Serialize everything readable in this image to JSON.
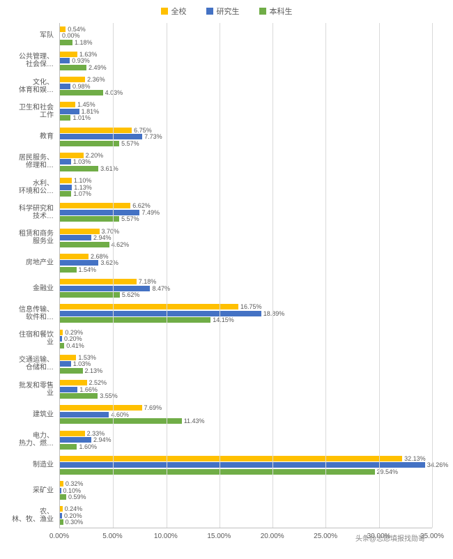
{
  "chart": {
    "type": "bar",
    "orientation": "horizontal",
    "xlim": [
      0,
      35
    ],
    "xtick_step": 5,
    "xtick_format_suffix": ".00%",
    "background_color": "#ffffff",
    "grid_color": "#d9d9d9",
    "axis_color": "#bfbfbf",
    "label_fontsize": 10,
    "value_fontsize": 9,
    "series": [
      {
        "name": "全校",
        "color": "#ffc000"
      },
      {
        "name": "研究生",
        "color": "#4472c4"
      },
      {
        "name": "本科生",
        "color": "#70ad47"
      }
    ],
    "categories": [
      {
        "label": "军队",
        "values": [
          0.54,
          0.0,
          1.18
        ]
      },
      {
        "label": "公共管理、社会保…",
        "values": [
          1.63,
          0.93,
          2.49
        ]
      },
      {
        "label": "文化、体育和娱…",
        "values": [
          2.36,
          0.98,
          4.03
        ]
      },
      {
        "label": "卫生和社会工作",
        "values": [
          1.45,
          1.81,
          1.01
        ]
      },
      {
        "label": "教育",
        "values": [
          6.75,
          7.73,
          5.57
        ]
      },
      {
        "label": "居民服务、修理和…",
        "values": [
          2.2,
          1.03,
          3.61
        ]
      },
      {
        "label": "水利、环境和公…",
        "values": [
          1.1,
          1.13,
          1.07
        ]
      },
      {
        "label": "科学研究和技术…",
        "values": [
          6.62,
          7.49,
          5.57
        ]
      },
      {
        "label": "租赁和商务服务业",
        "values": [
          3.7,
          2.94,
          4.62
        ]
      },
      {
        "label": "房地产业",
        "values": [
          2.68,
          3.62,
          1.54
        ]
      },
      {
        "label": "金融业",
        "values": [
          7.18,
          8.47,
          5.62
        ]
      },
      {
        "label": "信息传输、软件和…",
        "values": [
          16.75,
          18.89,
          14.15
        ]
      },
      {
        "label": "住宿和餐饮业",
        "values": [
          0.29,
          0.2,
          0.41
        ]
      },
      {
        "label": "交通运输、仓储和…",
        "values": [
          1.53,
          1.03,
          2.13
        ]
      },
      {
        "label": "批发和零售业",
        "values": [
          2.52,
          1.66,
          3.55
        ]
      },
      {
        "label": "建筑业",
        "values": [
          7.69,
          4.6,
          11.43
        ]
      },
      {
        "label": "电力、热力、燃…",
        "values": [
          2.33,
          2.94,
          1.6
        ]
      },
      {
        "label": "制造业",
        "values": [
          32.13,
          34.26,
          29.54
        ]
      },
      {
        "label": "采矿业",
        "values": [
          0.32,
          0.1,
          0.59
        ]
      },
      {
        "label": "农、林、牧、渔业",
        "values": [
          0.24,
          0.2,
          0.3
        ]
      }
    ],
    "watermark": "头条@志愿填报找勋哥"
  }
}
